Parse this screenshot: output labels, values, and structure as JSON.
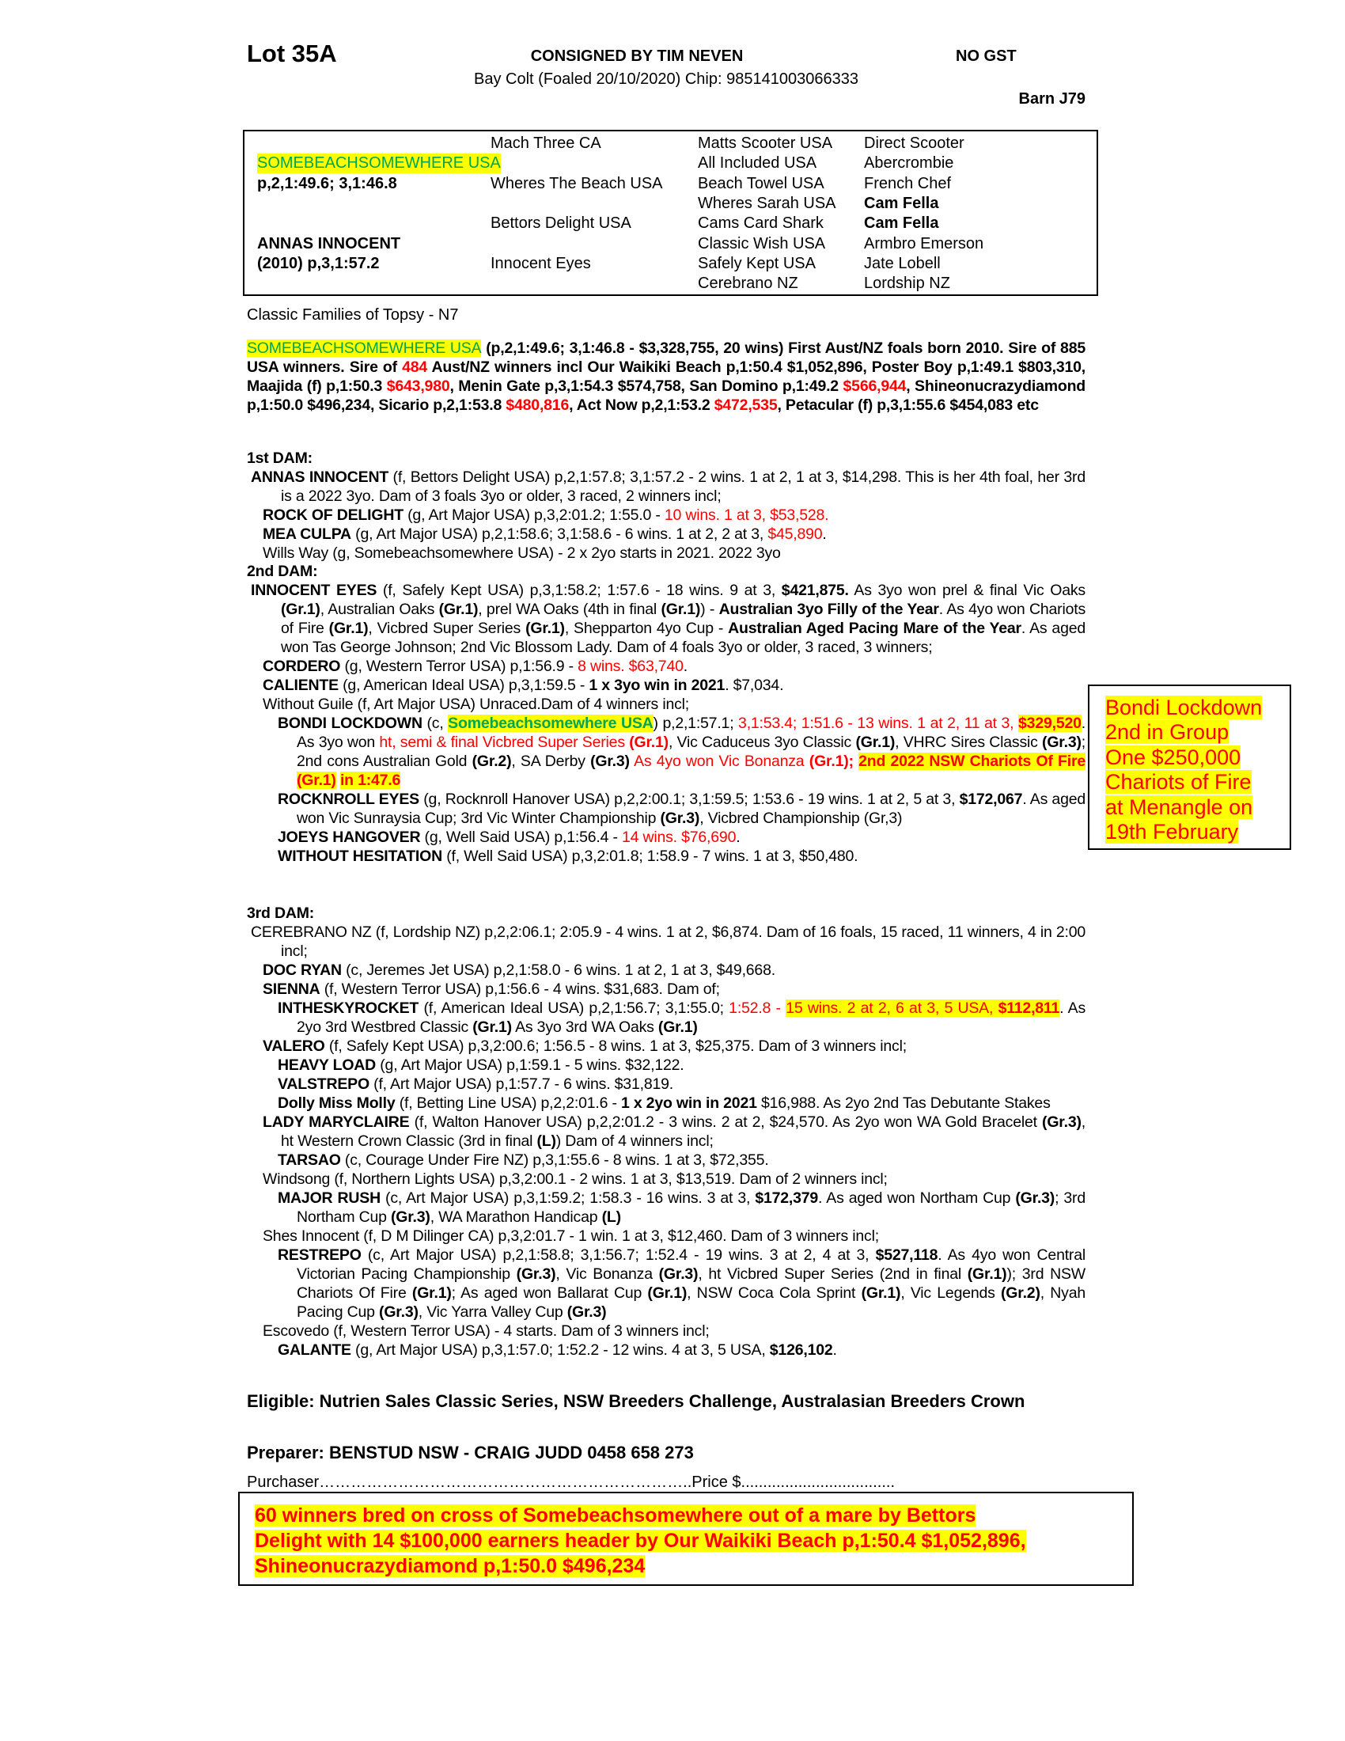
{
  "header": {
    "lot": "Lot 35A",
    "consigned": "CONSIGNED BY TIM NEVEN",
    "gst": "NO GST",
    "description": "Bay Colt (Foaled 20/10/2020) Chip: 985141003066333",
    "barn": "Barn J79"
  },
  "colors": {
    "red": "#ff0000",
    "highlight": "#ffff00",
    "green": "#00a651"
  },
  "pedigree": {
    "col1": [
      {
        "row": 1,
        "text": "SOMEBEACHSOMEWHERE USA",
        "style": "gh"
      },
      {
        "row": 2,
        "text": "p,2,1:49.6; 3,1:46.8",
        "style": "b"
      },
      {
        "row": 5,
        "text": "ANNAS INNOCENT",
        "style": "b"
      },
      {
        "row": 6,
        "text": "(2010) p,3,1:57.2",
        "style": "b"
      }
    ],
    "col2": [
      {
        "row": 0,
        "text": "Mach Three CA",
        "style": ""
      },
      {
        "row": 2,
        "text": "Wheres The Beach USA",
        "style": ""
      },
      {
        "row": 4,
        "text": "Bettors Delight USA",
        "style": ""
      },
      {
        "row": 6,
        "text": "Innocent Eyes",
        "style": ""
      }
    ],
    "col3": [
      {
        "row": 0,
        "text": "Matts Scooter USA",
        "style": ""
      },
      {
        "row": 1,
        "text": "All Included USA",
        "style": ""
      },
      {
        "row": 2,
        "text": "Beach Towel USA",
        "style": ""
      },
      {
        "row": 3,
        "text": "Wheres Sarah USA",
        "style": ""
      },
      {
        "row": 4,
        "text": "Cams Card Shark",
        "style": ""
      },
      {
        "row": 5,
        "text": "Classic Wish USA",
        "style": ""
      },
      {
        "row": 6,
        "text": "Safely Kept USA",
        "style": ""
      },
      {
        "row": 7,
        "text": "Cerebrano NZ",
        "style": ""
      }
    ],
    "col4": [
      {
        "row": 0,
        "text": "Direct Scooter",
        "style": ""
      },
      {
        "row": 1,
        "text": "Abercrombie",
        "style": ""
      },
      {
        "row": 2,
        "text": "French Chef",
        "style": ""
      },
      {
        "row": 3,
        "text": "Cam Fella",
        "style": "b"
      },
      {
        "row": 4,
        "text": "Cam Fella",
        "style": "b"
      },
      {
        "row": 5,
        "text": "Armbro Emerson",
        "style": ""
      },
      {
        "row": 6,
        "text": "Jate Lobell",
        "style": ""
      },
      {
        "row": 7,
        "text": "Lordship NZ",
        "style": ""
      }
    ]
  },
  "family": "Classic Families of Topsy - N7",
  "sire_paragraph": [
    [
      "SOMEBEACHSOMEWHERE USA",
      "gh"
    ],
    [
      " (p,2,1:49.6;  3,1:46.8 - $3,328,755, 20 wins) First Aust/NZ foals born 2010. Sire of 885 USA winners. Sire of ",
      "b"
    ],
    [
      "484",
      "br"
    ],
    [
      " Aust/NZ winners incl Our Waikiki Beach p,1:50.4 $1,052,896, Poster Boy p,1:49.1 $803,310, Maajida (f) p,1:50.3 ",
      "b"
    ],
    [
      "$643,980",
      "br"
    ],
    [
      ", Menin Gate p,3,1:54.3 $574,758, San Domino p,1:49.2 ",
      "b"
    ],
    [
      "$566,944",
      "br"
    ],
    [
      ", Shineonucrazydiamond p,1:50.0 $496,234, Sicario p,2,1:53.8 ",
      "b"
    ],
    [
      "$480,816",
      "br"
    ],
    [
      ", Act Now p,2,1:53.2 ",
      "b"
    ],
    [
      "$472,535",
      "br"
    ],
    [
      ", Petacular (f) p,3,1:55.6 $454,083 etc",
      "b"
    ]
  ],
  "sections": [
    {
      "heading": "1st DAM:",
      "entries": [
        {
          "level": 0,
          "segs": [
            [
              "ANNAS INNOCENT",
              "b"
            ],
            [
              " (f, Bettors Delight USA) p,2,1:57.8; 3,1:57.2 - 2 wins. 1 at 2, 1 at 3, $14,298. This is her 4th foal, her 3rd is a 2022 3yo. Dam of 3 foals 3yo or older, 3 raced, 2 winners incl;",
              ""
            ]
          ]
        },
        {
          "level": 1,
          "segs": [
            [
              "ROCK OF DELIGHT",
              "b"
            ],
            [
              " (g, Art Major USA) p,3,2:01.2; 1:55.0 - ",
              ""
            ],
            [
              "10 wins. 1 at 3, $53,528.",
              "r"
            ]
          ]
        },
        {
          "level": 1,
          "segs": [
            [
              "MEA CULPA",
              "b"
            ],
            [
              " (g, Art Major USA) p,2,1:58.6; 3,1:58.6 - 6 wins. 1 at 2, 2 at 3, ",
              ""
            ],
            [
              "$45,890",
              "r"
            ],
            [
              ".",
              ""
            ]
          ]
        },
        {
          "level": 1,
          "segs": [
            [
              "Wills Way (g, Somebeachsomewhere USA) - 2 x 2yo starts in 2021. 2022 3yo",
              ""
            ]
          ]
        }
      ]
    },
    {
      "heading": "2nd DAM:",
      "entries": [
        {
          "level": 0,
          "segs": [
            [
              "INNOCENT EYES",
              "b"
            ],
            [
              " (f, Safely Kept USA) p,3,1:58.2; 1:57.6 - 18 wins. 9 at 3, ",
              ""
            ],
            [
              "$421,875.",
              "b"
            ],
            [
              " As 3yo won prel & final Vic Oaks ",
              ""
            ],
            [
              "(Gr.1)",
              "b"
            ],
            [
              ", Australian Oaks ",
              ""
            ],
            [
              "(Gr.1)",
              "b"
            ],
            [
              ", prel WA Oaks (4th in final ",
              ""
            ],
            [
              "(Gr.1)",
              "b"
            ],
            [
              ") - ",
              ""
            ],
            [
              "Australian 3yo Filly of the Year",
              "b"
            ],
            [
              ". As 4yo won Chariots of Fire ",
              ""
            ],
            [
              "(Gr.1)",
              "b"
            ],
            [
              ", Vicbred Super Series ",
              ""
            ],
            [
              "(Gr.1)",
              "b"
            ],
            [
              ", Shepparton 4yo Cup - ",
              ""
            ],
            [
              "Australian Aged Pacing Mare of the Year",
              "b"
            ],
            [
              ". As aged won Tas George Johnson; 2nd Vic Blossom Lady. Dam of 4 foals 3yo or older, 3 raced, 3 winners;",
              ""
            ]
          ]
        },
        {
          "level": 1,
          "segs": [
            [
              "CORDERO",
              "b"
            ],
            [
              " (g, Western Terror USA) p,1:56.9 - ",
              ""
            ],
            [
              "8 wins. $63,740",
              "r"
            ],
            [
              ".",
              ""
            ]
          ]
        },
        {
          "level": 1,
          "segs": [
            [
              "CALIENTE",
              "b"
            ],
            [
              " (g, American Ideal USA) p,3,1:59.5 - ",
              ""
            ],
            [
              "1 x 3yo win in 2021",
              "b"
            ],
            [
              ". $7,034.",
              ""
            ]
          ]
        },
        {
          "level": 1,
          "segs": [
            [
              "Without Guile (f, Art Major USA) Unraced.Dam of 4 winners incl;",
              ""
            ]
          ]
        },
        {
          "level": 2,
          "segs": [
            [
              "BONDI LOCKDOWN",
              "b"
            ],
            [
              " (c, ",
              ""
            ],
            [
              "Somebeachsomewhere USA",
              "bgh"
            ],
            [
              ") p,2,1:57.1; ",
              ""
            ],
            [
              "3,1:53.4; 1:51.6 - 13 wins. 1 at 2, 11 at 3, ",
              "r"
            ],
            [
              "$329,520",
              "brh"
            ],
            [
              ". As 3yo won ",
              ""
            ],
            [
              "ht, semi & final Vicbred Super Series ",
              "r"
            ],
            [
              "(Gr.1)",
              "br"
            ],
            [
              ", Vic Caduceus 3yo Classic ",
              ""
            ],
            [
              "(Gr.1)",
              "b"
            ],
            [
              ", VHRC Sires Classic ",
              ""
            ],
            [
              "(Gr.3)",
              "b"
            ],
            [
              "; 2nd cons Australian Gold ",
              ""
            ],
            [
              "(Gr.2)",
              "b"
            ],
            [
              ", SA Derby ",
              ""
            ],
            [
              "(Gr.3)",
              "b"
            ],
            [
              " As 4yo won Vic Bonanza ",
              "r"
            ],
            [
              "(Gr.1)",
              "br"
            ],
            [
              "; ",
              "br"
            ],
            [
              "2nd 2022 NSW Chariots Of Fire (Gr.1)",
              "brh"
            ],
            [
              " ",
              "r"
            ],
            [
              "in 1:47.6",
              "brh"
            ]
          ]
        },
        {
          "level": 2,
          "segs": [
            [
              "ROCKNROLL EYES",
              "b"
            ],
            [
              " (g, Rocknroll Hanover USA) p,2,2:00.1; 3,1:59.5; 1:53.6 - 19 wins. 1 at 2, 5 at 3, ",
              ""
            ],
            [
              "$172,067",
              "b"
            ],
            [
              ". As aged won Vic Sunraysia Cup; 3rd Vic Winter Championship ",
              ""
            ],
            [
              "(Gr.3)",
              "b"
            ],
            [
              ", Vicbred Championship (Gr,3)",
              ""
            ]
          ]
        },
        {
          "level": 2,
          "segs": [
            [
              "JOEYS HANGOVER",
              "b"
            ],
            [
              " (g, Well Said USA) p,1:56.4 - ",
              ""
            ],
            [
              "14 wins. $76,690",
              "r"
            ],
            [
              ".",
              ""
            ]
          ]
        },
        {
          "level": 2,
          "segs": [
            [
              "WITHOUT HESITATION",
              "b"
            ],
            [
              " (f, Well Said USA) p,3,2:01.8; 1:58.9 - 7 wins. 1 at 3, $50,480.",
              ""
            ]
          ]
        }
      ]
    },
    {
      "heading": "3rd DAM:",
      "entries": [
        {
          "level": 0,
          "segs": [
            [
              "CEREBRANO NZ (f, Lordship NZ) p,2,2:06.1; 2:05.9 - 4 wins. 1 at 2, $6,874. Dam of 16 foals, 15 raced, 11 winners, 4 in 2:00 incl;",
              ""
            ]
          ]
        },
        {
          "level": 1,
          "segs": [
            [
              "DOC RYAN",
              "b"
            ],
            [
              " (c, Jeremes Jet USA) p,2,1:58.0 - 6 wins. 1 at 2, 1 at 3, $49,668.",
              ""
            ]
          ]
        },
        {
          "level": 1,
          "segs": [
            [
              "SIENNA",
              "b"
            ],
            [
              " (f, Western Terror USA) p,1:56.6 - 4 wins. $31,683. Dam of;",
              ""
            ]
          ]
        },
        {
          "level": 2,
          "segs": [
            [
              "INTHESKYROCKET",
              "b"
            ],
            [
              " (f, American Ideal USA) p,2,1:56.7; 3,1:55.0; ",
              ""
            ],
            [
              "1:52.8 - ",
              "r"
            ],
            [
              "15 wins. 2 at 2, 6 at 3, 5 USA, ",
              "rh"
            ],
            [
              "$112,811",
              "brh"
            ],
            [
              ". As 2yo 3rd Westbred Classic ",
              ""
            ],
            [
              "(Gr.1)",
              "b"
            ],
            [
              " As 3yo 3rd WA Oaks ",
              ""
            ],
            [
              "(Gr.1)",
              "b"
            ]
          ]
        },
        {
          "level": 1,
          "segs": [
            [
              "VALERO",
              "b"
            ],
            [
              " (f, Safely Kept USA) p,3,2:00.6; 1:56.5 - 8 wins. 1 at 3, $25,375. Dam of 3 winners incl;",
              ""
            ]
          ]
        },
        {
          "level": 2,
          "segs": [
            [
              "HEAVY LOAD",
              "b"
            ],
            [
              " (g, Art Major USA) p,1:59.1 - 5 wins. $32,122.",
              ""
            ]
          ]
        },
        {
          "level": 2,
          "segs": [
            [
              "VALSTREPO",
              "b"
            ],
            [
              " (f, Art Major USA) p,1:57.7 - 6 wins. $31,819.",
              ""
            ]
          ]
        },
        {
          "level": 2,
          "segs": [
            [
              "Dolly Miss Molly",
              "b"
            ],
            [
              " (f, Betting Line USA) p,2,2:01.6 - ",
              ""
            ],
            [
              "1 x 2yo win in 2021",
              "b"
            ],
            [
              " $16,988. As 2yo 2nd Tas Debutante Stakes",
              ""
            ]
          ]
        },
        {
          "level": 1,
          "segs": [
            [
              "LADY MARYCLAIRE",
              "b"
            ],
            [
              " (f, Walton Hanover USA) p,2,2:01.2 - 3 wins. 2 at 2, $24,570. As 2yo won WA Gold Bracelet ",
              ""
            ],
            [
              "(Gr.3)",
              "b"
            ],
            [
              ", ht Western Crown Classic (3rd in final ",
              ""
            ],
            [
              "(L)",
              "b"
            ],
            [
              ") Dam of 4 winners incl;",
              ""
            ]
          ]
        },
        {
          "level": 2,
          "segs": [
            [
              "TARSAO",
              "b"
            ],
            [
              " (c, Courage Under Fire NZ) p,3,1:55.6 - 8 wins. 1 at 3, $72,355.",
              ""
            ]
          ]
        },
        {
          "level": 1,
          "segs": [
            [
              "Windsong (f, Northern Lights USA) p,3,2:00.1 - 2 wins. 1 at 3, $13,519. Dam of 2 winners incl;",
              ""
            ]
          ]
        },
        {
          "level": 2,
          "segs": [
            [
              "MAJOR RUSH",
              "b"
            ],
            [
              " (c, Art Major USA) p,3,1:59.2; 1:58.3 - 16 wins. 3 at 3, ",
              ""
            ],
            [
              "$172,379",
              "b"
            ],
            [
              ". As aged won Northam Cup ",
              ""
            ],
            [
              "(Gr.3)",
              "b"
            ],
            [
              "; 3rd Northam Cup ",
              ""
            ],
            [
              "(Gr.3)",
              "b"
            ],
            [
              ", WA Marathon Handicap ",
              ""
            ],
            [
              "(L)",
              "b"
            ]
          ]
        },
        {
          "level": 1,
          "segs": [
            [
              "Shes Innocent (f, D M Dilinger CA) p,3,2:01.7 - 1 win. 1 at 3, $12,460. Dam of 3 winners incl;",
              ""
            ]
          ]
        },
        {
          "level": 2,
          "segs": [
            [
              "RESTREPO",
              "b"
            ],
            [
              " (c, Art Major USA) p,2,1:58.8; 3,1:56.7; 1:52.4 - 19 wins. 3 at 2, 4 at 3, ",
              ""
            ],
            [
              "$527,118",
              "b"
            ],
            [
              ". As 4yo won Central Victorian Pacing Championship ",
              ""
            ],
            [
              "(Gr.3)",
              "b"
            ],
            [
              ", Vic Bonanza ",
              ""
            ],
            [
              "(Gr.3)",
              "b"
            ],
            [
              ", ht Vicbred Super Series (2nd in final ",
              ""
            ],
            [
              "(Gr.1)",
              "b"
            ],
            [
              "); 3rd NSW Chariots Of Fire ",
              ""
            ],
            [
              "(Gr.1)",
              "b"
            ],
            [
              "; As aged won Ballarat Cup ",
              ""
            ],
            [
              "(Gr.1)",
              "b"
            ],
            [
              ", NSW Coca Cola Sprint ",
              ""
            ],
            [
              "(Gr.1)",
              "b"
            ],
            [
              ", Vic Legends ",
              ""
            ],
            [
              "(Gr.2)",
              "b"
            ],
            [
              ", Nyah Pacing Cup ",
              ""
            ],
            [
              "(Gr.3)",
              "b"
            ],
            [
              ", Vic Yarra Valley Cup ",
              ""
            ],
            [
              "(Gr.3)",
              "b"
            ]
          ]
        },
        {
          "level": 1,
          "segs": [
            [
              "Escovedo (f, Western Terror USA) - 4 starts. Dam of 3 winners incl;",
              ""
            ]
          ]
        },
        {
          "level": 2,
          "segs": [
            [
              "GALANTE",
              "b"
            ],
            [
              " (g, Art Major USA) p,3,1:57.0; 1:52.2 - 12 wins. 4 at 3, 5 USA, ",
              ""
            ],
            [
              "$126,102",
              "b"
            ],
            [
              ".",
              ""
            ]
          ]
        }
      ]
    }
  ],
  "side_note": [
    "Bondi Lockdown",
    "2nd in Group",
    "One $250,000",
    "Chariots of Fire",
    "at Menangle on",
    "19th February"
  ],
  "eligible": "Eligible: Nutrien Sales Classic Series, NSW Breeders Challenge, Australasian Breeders Crown",
  "preparer": "Preparer: BENSTUD NSW - CRAIG JUDD 0458 658 273",
  "purchaser": "Purchaser……………………………………………………………..Price $...................................",
  "bottom_note": [
    "60 winners bred on cross of Somebeachsomewhere out of a mare by Bettors",
    "Delight with 14 $100,000 earners header by Our Waikiki Beach p,1:50.4 $1,052,896,",
    "Shineonucrazydiamond p,1:50.0 $496,234"
  ]
}
